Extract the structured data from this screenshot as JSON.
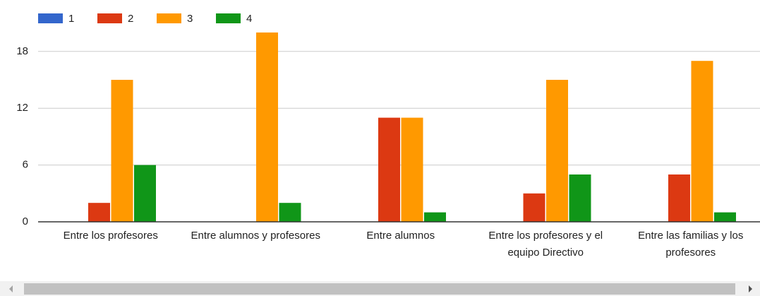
{
  "chart_data": {
    "type": "bar",
    "categories": [
      "Entre los profesores",
      "Entre alumnos y profesores",
      "Entre alumnos",
      "Entre los profesores y el equipo Directivo",
      "Entre las familias y los profesores"
    ],
    "series": [
      {
        "name": "1",
        "color": "#3366cc",
        "values": [
          0,
          0,
          0,
          0,
          0
        ]
      },
      {
        "name": "2",
        "color": "#dc3912",
        "values": [
          2,
          0,
          11,
          3,
          5
        ]
      },
      {
        "name": "3",
        "color": "#ff9900",
        "values": [
          15,
          20,
          11,
          15,
          17
        ]
      },
      {
        "name": "4",
        "color": "#109618",
        "values": [
          6,
          2,
          1,
          5,
          1
        ]
      }
    ],
    "ylim": [
      0,
      20
    ],
    "yticks": [
      0,
      6,
      12,
      18
    ],
    "grid": true,
    "legend": "top"
  }
}
